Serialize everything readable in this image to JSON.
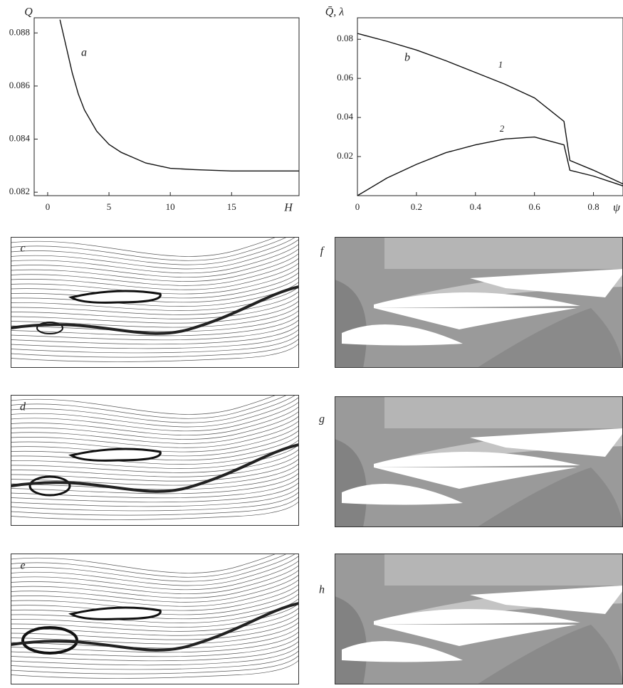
{
  "chart_data": [
    {
      "type": "line",
      "annotation": "a",
      "x_label": "H",
      "y_label": "Q",
      "x": [
        1,
        1.5,
        2,
        2.5,
        3,
        4,
        5,
        6,
        7,
        8,
        10,
        12,
        15,
        20.5
      ],
      "values": [
        0.0885,
        0.0875,
        0.0865,
        0.0857,
        0.0851,
        0.0843,
        0.0838,
        0.0835,
        0.0833,
        0.0831,
        0.0829,
        0.08285,
        0.0828,
        0.0828
      ],
      "color": "#111111",
      "xlim": [
        -1.1,
        20.5
      ],
      "ylim": [
        0.08187,
        0.08857
      ],
      "xticks": [
        0,
        5,
        10,
        15
      ],
      "yticks": [
        0.082,
        0.084,
        0.086,
        0.088
      ]
    },
    {
      "type": "line",
      "annotation": "b",
      "x_label": "ψ",
      "y_label": "Q̄, λ",
      "x": [
        0,
        0.1,
        0.2,
        0.3,
        0.4,
        0.5,
        0.6,
        0.65,
        0.7,
        0.72,
        0.8,
        0.9
      ],
      "series": [
        {
          "name": "1",
          "color": "#111111",
          "values": [
            0.083,
            0.079,
            0.0745,
            0.069,
            0.063,
            0.057,
            0.05,
            0.044,
            0.038,
            0.018,
            0.013,
            0.006
          ]
        },
        {
          "name": "2",
          "color": "#111111",
          "values": [
            0,
            0.009,
            0.016,
            0.022,
            0.026,
            0.029,
            0.03,
            0.028,
            0.026,
            0.013,
            0.01,
            0.005
          ]
        }
      ],
      "xlim": [
        0,
        0.9
      ],
      "ylim": [
        0,
        0.091
      ],
      "xticks": [
        0,
        0.2,
        0.4,
        0.6,
        0.8
      ],
      "yticks": [
        0.02,
        0.04,
        0.06,
        0.08
      ]
    }
  ],
  "panels": [
    {
      "label": "c",
      "kind": "streamlines"
    },
    {
      "label": "d",
      "kind": "streamlines"
    },
    {
      "label": "e",
      "kind": "streamlines"
    },
    {
      "label": "f",
      "kind": "contours"
    },
    {
      "label": "g",
      "kind": "contours"
    },
    {
      "label": "h",
      "kind": "contours"
    }
  ]
}
